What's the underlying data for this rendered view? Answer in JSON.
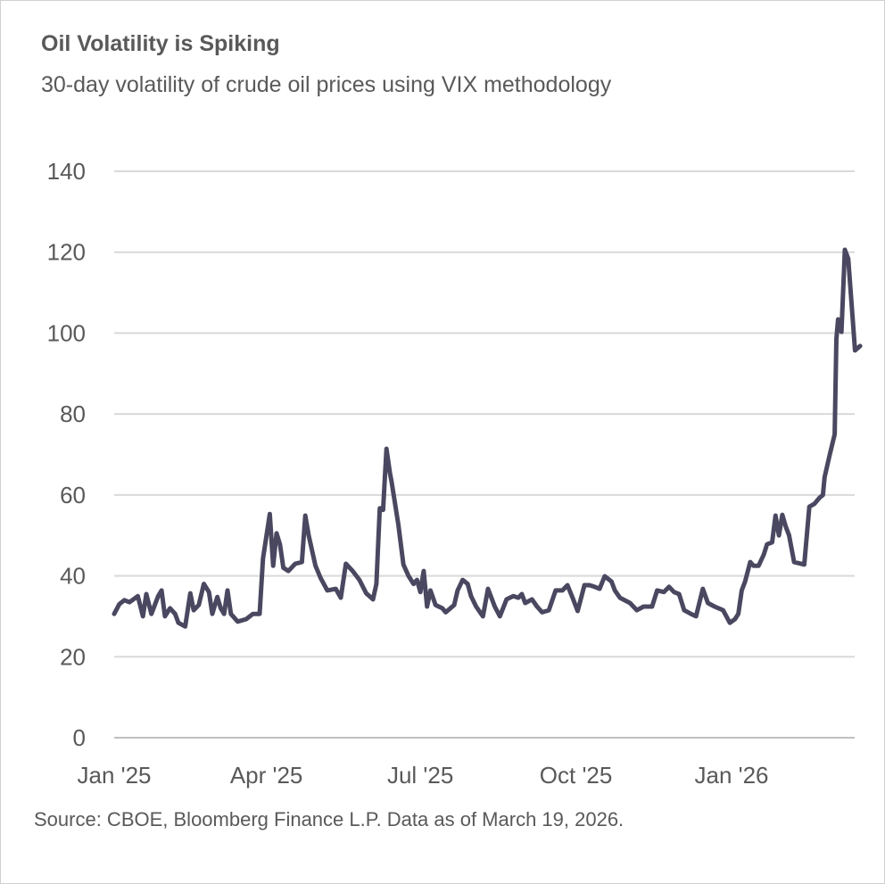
{
  "chart_data": {
    "type": "line",
    "title": "Oil Volatility is Spiking",
    "subtitle": "30-day volatility of crude oil prices using VIX methodology",
    "source": "Source: CBOE, Bloomberg Finance L.P. Data as of March 19, 2026.",
    "xlabel": "",
    "ylabel": "",
    "ylim": [
      0,
      140
    ],
    "yticks": [
      "0",
      "20",
      "40",
      "60",
      "80",
      "100",
      "120",
      "140"
    ],
    "xticks": [
      {
        "label": "Jan '25",
        "date": "2025-01-01"
      },
      {
        "label": "Apr '25",
        "date": "2025-04-01"
      },
      {
        "label": "Jul '25",
        "date": "2025-07-01"
      },
      {
        "label": "Oct '25",
        "date": "2025-10-01"
      },
      {
        "label": "Jan '26",
        "date": "2026-01-01"
      }
    ],
    "grid": true,
    "line_color": "#4a4860",
    "grid_color": "#d9d9d9",
    "series": [
      {
        "points": [
          [
            "2025-01-01",
            30.6
          ],
          [
            "2025-01-04",
            33
          ],
          [
            "2025-01-07",
            34
          ],
          [
            "2025-01-10",
            33.5
          ],
          [
            "2025-01-15",
            35
          ],
          [
            "2025-01-18",
            30
          ],
          [
            "2025-01-20",
            35.5
          ],
          [
            "2025-01-23",
            30.6
          ],
          [
            "2025-01-27",
            35
          ],
          [
            "2025-01-29",
            36.4
          ],
          [
            "2025-01-31",
            30
          ],
          [
            "2025-02-03",
            32
          ],
          [
            "2025-02-06",
            30.6
          ],
          [
            "2025-02-08",
            28.4
          ],
          [
            "2025-02-12",
            27.5
          ],
          [
            "2025-02-15",
            35.7
          ],
          [
            "2025-02-17",
            31.5
          ],
          [
            "2025-02-20",
            32.8
          ],
          [
            "2025-02-23",
            38
          ],
          [
            "2025-02-26",
            36
          ],
          [
            "2025-02-28",
            30.6
          ],
          [
            "2025-03-03",
            34.8
          ],
          [
            "2025-03-05",
            32
          ],
          [
            "2025-03-07",
            30.6
          ],
          [
            "2025-03-09",
            36.4
          ],
          [
            "2025-03-11",
            30.6
          ],
          [
            "2025-03-15",
            28.7
          ],
          [
            "2025-03-20",
            29.3
          ],
          [
            "2025-03-24",
            30.6
          ],
          [
            "2025-03-28",
            30.6
          ],
          [
            "2025-03-30",
            44.3
          ],
          [
            "2025-04-03",
            55.3
          ],
          [
            "2025-04-05",
            42.5
          ],
          [
            "2025-04-07",
            50.5
          ],
          [
            "2025-04-09",
            47.8
          ],
          [
            "2025-04-11",
            42
          ],
          [
            "2025-04-14",
            41.2
          ],
          [
            "2025-04-18",
            43
          ],
          [
            "2025-04-22",
            43.4
          ],
          [
            "2025-04-24",
            54.9
          ],
          [
            "2025-04-26",
            50
          ],
          [
            "2025-04-30",
            42.5
          ],
          [
            "2025-05-03",
            39.5
          ],
          [
            "2025-05-07",
            36.4
          ],
          [
            "2025-05-12",
            36.8
          ],
          [
            "2025-05-15",
            34.6
          ],
          [
            "2025-05-18",
            43
          ],
          [
            "2025-05-22",
            41.2
          ],
          [
            "2025-05-26",
            39
          ],
          [
            "2025-05-30",
            35.7
          ],
          [
            "2025-06-03",
            34.2
          ],
          [
            "2025-06-05",
            38
          ],
          [
            "2025-06-07",
            56.7
          ],
          [
            "2025-06-09",
            56.3
          ],
          [
            "2025-06-11",
            71.4
          ],
          [
            "2025-06-13",
            65.5
          ],
          [
            "2025-06-14",
            63.3
          ],
          [
            "2025-06-18",
            52.7
          ],
          [
            "2025-06-21",
            42.8
          ],
          [
            "2025-06-24",
            40
          ],
          [
            "2025-06-27",
            38
          ],
          [
            "2025-06-29",
            39
          ],
          [
            "2025-07-01",
            36
          ],
          [
            "2025-07-03",
            41.2
          ],
          [
            "2025-07-05",
            32.4
          ],
          [
            "2025-07-07",
            36.4
          ],
          [
            "2025-07-10",
            32.8
          ],
          [
            "2025-07-14",
            32
          ],
          [
            "2025-07-16",
            31
          ],
          [
            "2025-07-21",
            32.8
          ],
          [
            "2025-07-23",
            36.4
          ],
          [
            "2025-07-26",
            39
          ],
          [
            "2025-07-29",
            38
          ],
          [
            "2025-07-31",
            35
          ],
          [
            "2025-08-03",
            32.4
          ],
          [
            "2025-08-07",
            30
          ],
          [
            "2025-08-10",
            36.8
          ],
          [
            "2025-08-14",
            32.4
          ],
          [
            "2025-08-17",
            30
          ],
          [
            "2025-08-21",
            34.2
          ],
          [
            "2025-08-25",
            35
          ],
          [
            "2025-08-28",
            34.6
          ],
          [
            "2025-08-30",
            35.5
          ],
          [
            "2025-09-01",
            33.3
          ],
          [
            "2025-09-05",
            34.2
          ],
          [
            "2025-09-08",
            32.4
          ],
          [
            "2025-09-11",
            31
          ],
          [
            "2025-09-15",
            31.5
          ],
          [
            "2025-09-19",
            36.4
          ],
          [
            "2025-09-23",
            36.4
          ],
          [
            "2025-09-26",
            37.7
          ],
          [
            "2025-09-29",
            34.6
          ],
          [
            "2025-10-02",
            31.3
          ],
          [
            "2025-10-06",
            37.7
          ],
          [
            "2025-10-09",
            37.7
          ],
          [
            "2025-10-12",
            37.3
          ],
          [
            "2025-10-15",
            36.8
          ],
          [
            "2025-10-18",
            39.9
          ],
          [
            "2025-10-22",
            38.6
          ],
          [
            "2025-10-24",
            36.4
          ],
          [
            "2025-10-27",
            34.6
          ],
          [
            "2025-11-02",
            33.3
          ],
          [
            "2025-11-06",
            31.5
          ],
          [
            "2025-11-10",
            32.4
          ],
          [
            "2025-11-15",
            32.4
          ],
          [
            "2025-11-18",
            36.4
          ],
          [
            "2025-11-22",
            36
          ],
          [
            "2025-11-25",
            37.3
          ],
          [
            "2025-11-28",
            36
          ],
          [
            "2025-12-01",
            35.5
          ],
          [
            "2025-12-04",
            31.5
          ],
          [
            "2025-12-08",
            30.6
          ],
          [
            "2025-12-11",
            30
          ],
          [
            "2025-12-15",
            36.8
          ],
          [
            "2025-12-18",
            33.3
          ],
          [
            "2025-12-22",
            32.4
          ],
          [
            "2025-12-27",
            31.5
          ],
          [
            "2025-12-31",
            28.4
          ],
          [
            "2026-01-03",
            29.3
          ],
          [
            "2026-01-05",
            30.6
          ],
          [
            "2026-01-07",
            36.4
          ],
          [
            "2026-01-09",
            38.6
          ],
          [
            "2026-01-12",
            43.4
          ],
          [
            "2026-01-14",
            42.5
          ],
          [
            "2026-01-17",
            42.5
          ],
          [
            "2026-01-20",
            45.2
          ],
          [
            "2026-01-22",
            47.8
          ],
          [
            "2026-01-25",
            48.3
          ],
          [
            "2026-01-27",
            54.9
          ],
          [
            "2026-01-29",
            50
          ],
          [
            "2026-01-31",
            55.1
          ],
          [
            "2026-02-02",
            52.2
          ],
          [
            "2026-02-04",
            50
          ],
          [
            "2026-02-07",
            43.4
          ],
          [
            "2026-02-13",
            42.8
          ],
          [
            "2026-02-16",
            57.1
          ],
          [
            "2026-02-19",
            57.8
          ],
          [
            "2026-02-22",
            59.3
          ],
          [
            "2026-02-24",
            60
          ],
          [
            "2026-02-25",
            64.4
          ],
          [
            "2026-02-28",
            69.9
          ],
          [
            "2026-03-03",
            75
          ],
          [
            "2026-03-04",
            98.5
          ],
          [
            "2026-03-05",
            103.4
          ],
          [
            "2026-03-07",
            100.3
          ],
          [
            "2026-03-09",
            120.6
          ],
          [
            "2026-03-11",
            118.4
          ],
          [
            "2026-03-15",
            95.7
          ],
          [
            "2026-03-18",
            96.8
          ]
        ]
      }
    ]
  }
}
